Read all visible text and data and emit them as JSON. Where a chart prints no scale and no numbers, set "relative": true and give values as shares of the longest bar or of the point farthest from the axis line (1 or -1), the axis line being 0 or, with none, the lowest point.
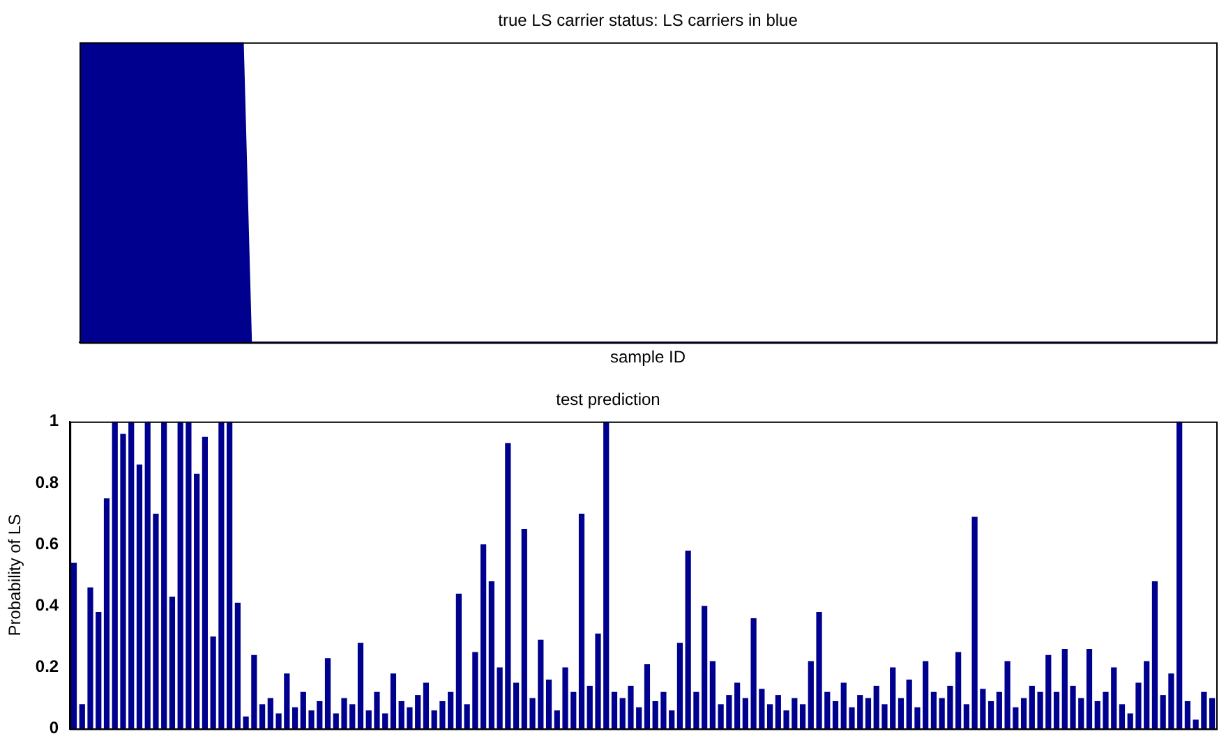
{
  "chart_data": [
    {
      "type": "area",
      "title": "true LS carrier status: LS carriers in blue",
      "xlabel": "sample ID",
      "relative": true,
      "tick_labels": false,
      "categories": [
        null,
        null,
        null,
        null,
        null,
        null,
        null,
        null,
        null,
        null,
        null,
        null,
        null,
        null,
        null,
        null,
        null,
        null,
        null,
        null,
        null,
        null,
        null,
        null,
        null,
        null,
        null,
        null,
        null,
        null,
        null,
        null,
        null,
        null,
        null,
        null,
        null,
        null,
        null,
        null,
        null,
        null,
        null,
        null,
        null,
        null,
        null,
        null,
        null,
        null,
        null,
        null,
        null,
        null,
        null,
        null,
        null,
        null,
        null,
        null,
        null,
        null,
        null,
        null,
        null,
        null,
        null,
        null,
        null,
        null,
        null,
        null,
        null,
        null,
        null,
        null,
        null,
        null,
        null,
        null,
        null,
        null,
        null,
        null,
        null,
        null,
        null,
        null,
        null,
        null,
        null,
        null,
        null,
        null,
        null,
        null,
        null,
        null,
        null,
        null,
        null,
        null,
        null,
        null,
        null,
        null,
        null,
        null,
        null,
        null,
        null,
        null,
        null,
        null,
        null,
        null,
        null,
        null,
        null,
        null,
        null,
        null,
        null,
        null,
        null,
        null,
        null,
        null,
        null,
        null,
        null,
        null,
        null,
        null,
        null,
        null,
        null,
        null,
        null,
        null
      ],
      "color": "#00008f",
      "values": [
        1,
        1,
        1,
        1,
        1,
        1,
        1,
        1,
        1,
        1,
        1,
        1,
        1,
        1,
        1,
        1,
        1,
        1,
        1,
        1,
        1,
        0,
        0,
        0,
        0,
        0,
        0,
        0,
        0,
        0,
        0,
        0,
        0,
        0,
        0,
        0,
        0,
        0,
        0,
        0,
        0,
        0,
        0,
        0,
        0,
        0,
        0,
        0,
        0,
        0,
        0,
        0,
        0,
        0,
        0,
        0,
        0,
        0,
        0,
        0,
        0,
        0,
        0,
        0,
        0,
        0,
        0,
        0,
        0,
        0,
        0,
        0,
        0,
        0,
        0,
        0,
        0,
        0,
        0,
        0,
        0,
        0,
        0,
        0,
        0,
        0,
        0,
        0,
        0,
        0,
        0,
        0,
        0,
        0,
        0,
        0,
        0,
        0,
        0,
        0,
        0,
        0,
        0,
        0,
        0,
        0,
        0,
        0,
        0,
        0,
        0,
        0,
        0,
        0,
        0,
        0,
        0,
        0,
        0,
        0,
        0,
        0,
        0,
        0,
        0,
        0,
        0,
        0,
        0,
        0,
        0,
        0,
        0,
        0,
        0,
        0,
        0,
        0,
        0,
        0
      ]
    },
    {
      "type": "bar",
      "title": "test prediction",
      "ylabel": "Probability of LS",
      "tick_labels": "y",
      "ylim": [
        0,
        1
      ],
      "yticks": [
        0,
        0.2,
        0.4,
        0.6,
        0.8,
        1
      ],
      "categories": [
        null,
        null,
        null,
        null,
        null,
        null,
        null,
        null,
        null,
        null,
        null,
        null,
        null,
        null,
        null,
        null,
        null,
        null,
        null,
        null,
        null,
        null,
        null,
        null,
        null,
        null,
        null,
        null,
        null,
        null,
        null,
        null,
        null,
        null,
        null,
        null,
        null,
        null,
        null,
        null,
        null,
        null,
        null,
        null,
        null,
        null,
        null,
        null,
        null,
        null,
        null,
        null,
        null,
        null,
        null,
        null,
        null,
        null,
        null,
        null,
        null,
        null,
        null,
        null,
        null,
        null,
        null,
        null,
        null,
        null,
        null,
        null,
        null,
        null,
        null,
        null,
        null,
        null,
        null,
        null,
        null,
        null,
        null,
        null,
        null,
        null,
        null,
        null,
        null,
        null,
        null,
        null,
        null,
        null,
        null,
        null,
        null,
        null,
        null,
        null,
        null,
        null,
        null,
        null,
        null,
        null,
        null,
        null,
        null,
        null,
        null,
        null,
        null,
        null,
        null,
        null,
        null,
        null,
        null,
        null,
        null,
        null,
        null,
        null,
        null,
        null,
        null,
        null,
        null,
        null,
        null,
        null,
        null,
        null,
        null,
        null,
        null,
        null,
        null,
        null
      ],
      "color": "#00008f",
      "values": [
        0.54,
        0.08,
        0.46,
        0.38,
        0.75,
        1,
        0.96,
        1,
        0.86,
        1,
        0.7,
        1,
        0.43,
        1,
        1,
        0.83,
        0.95,
        0.3,
        1,
        1,
        0.41,
        0.04,
        0.24,
        0.08,
        0.1,
        0.05,
        0.18,
        0.07,
        0.12,
        0.06,
        0.09,
        0.23,
        0.05,
        0.1,
        0.08,
        0.28,
        0.06,
        0.12,
        0.05,
        0.18,
        0.09,
        0.07,
        0.11,
        0.15,
        0.06,
        0.09,
        0.12,
        0.44,
        0.08,
        0.25,
        0.6,
        0.48,
        0.2,
        0.93,
        0.15,
        0.65,
        0.1,
        0.29,
        0.16,
        0.06,
        0.2,
        0.12,
        0.7,
        0.14,
        0.31,
        1,
        0.12,
        0.1,
        0.14,
        0.07,
        0.21,
        0.09,
        0.12,
        0.06,
        0.28,
        0.58,
        0.12,
        0.4,
        0.22,
        0.08,
        0.11,
        0.15,
        0.1,
        0.36,
        0.13,
        0.08,
        0.11,
        0.06,
        0.1,
        0.08,
        0.22,
        0.38,
        0.12,
        0.09,
        0.15,
        0.07,
        0.11,
        0.1,
        0.14,
        0.08,
        0.2,
        0.1,
        0.16,
        0.07,
        0.22,
        0.12,
        0.1,
        0.14,
        0.25,
        0.08,
        0.69,
        0.13,
        0.09,
        0.12,
        0.22,
        0.07,
        0.1,
        0.14,
        0.12,
        0.24,
        0.12,
        0.26,
        0.14,
        0.1,
        0.26,
        0.09,
        0.12,
        0.2,
        0.08,
        0.05,
        0.15,
        0.22,
        0.48,
        0.11,
        0.18,
        1,
        0.09,
        0.03,
        0.12,
        0.1
      ]
    }
  ]
}
